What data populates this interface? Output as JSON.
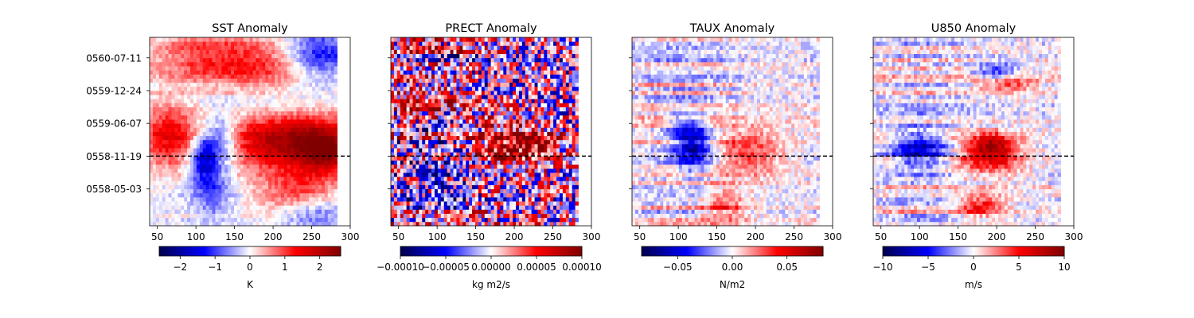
{
  "chart_data": [
    {
      "type": "heatmap",
      "title": "SST Anomaly",
      "x_ticks": [
        50,
        100,
        150,
        200,
        250,
        300
      ],
      "xlim": [
        40,
        300
      ],
      "data_x_extent": [
        40,
        283
      ],
      "y_ticks": [
        "0558-05-03",
        "0558-11-19",
        "0559-06-07",
        "0559-12-24",
        "0560-07-11"
      ],
      "y_tick_rows": [
        9,
        17,
        25,
        33,
        41
      ],
      "n_rows": 46,
      "reference_line_row": 17,
      "reference_line_style": "dashed",
      "colormap": "seismic",
      "colorbar": {
        "label": "K",
        "range": [
          -2.6,
          2.6
        ],
        "ticks": [
          "−2",
          "−1",
          "0",
          "1",
          "2"
        ],
        "tick_values": [
          -2,
          -1,
          0,
          1,
          2
        ]
      },
      "features": [
        {
          "x": 220,
          "row": 21,
          "wx": 60,
          "wr": 5,
          "value": 2.3
        },
        {
          "x": 270,
          "row": 18,
          "wx": 25,
          "wr": 4,
          "value": 1.5
        },
        {
          "x": 65,
          "row": 22,
          "wx": 25,
          "wr": 5,
          "value": 1.5
        },
        {
          "x": 110,
          "row": 17,
          "wx": 12,
          "wr": 4,
          "value": -1.6
        },
        {
          "x": 135,
          "row": 21,
          "wx": 15,
          "wr": 4,
          "value": -1.2
        },
        {
          "x": 120,
          "row": 10,
          "wx": 18,
          "wr": 5,
          "value": -0.9
        },
        {
          "x": 260,
          "row": 42,
          "wx": 30,
          "wr": 4,
          "value": -1.3
        },
        {
          "x": 110,
          "row": 42,
          "wx": 50,
          "wr": 5,
          "value": 1.0
        },
        {
          "x": 190,
          "row": 38,
          "wx": 45,
          "wr": 5,
          "value": 0.9
        },
        {
          "x": 230,
          "row": 8,
          "wx": 35,
          "wr": 4,
          "value": 1.0
        },
        {
          "x": 200,
          "row": 30,
          "wx": 60,
          "wr": 4,
          "value": -0.6
        },
        {
          "x": 250,
          "row": 3,
          "wx": 30,
          "wr": 3,
          "value": -0.9
        }
      ],
      "noise": 0.25,
      "stripe_amplitude": 0.2
    },
    {
      "type": "heatmap",
      "title": "PRECT Anomaly",
      "x_ticks": [
        50,
        100,
        150,
        200,
        250,
        300
      ],
      "xlim": [
        40,
        300
      ],
      "data_x_extent": [
        40,
        283
      ],
      "y_ticks": [
        "0558-05-03",
        "0558-11-19",
        "0559-06-07",
        "0559-12-24",
        "0560-07-11"
      ],
      "y_tick_rows": [
        9,
        17,
        25,
        33,
        41
      ],
      "n_rows": 46,
      "reference_line_row": 17,
      "reference_line_style": "dashed",
      "colormap": "seismic",
      "colorbar": {
        "label": "kg m2/s",
        "range": [
          -0.0001,
          0.0001
        ],
        "ticks": [
          "−0.00010",
          "−0.00005",
          "0.00000",
          "0.00005",
          "0.00010"
        ],
        "tick_values": [
          -0.0001,
          -5e-05,
          0,
          5e-05,
          0.0001
        ]
      },
      "features": [
        {
          "x": 190,
          "row": 21,
          "wx": 40,
          "wr": 4,
          "value": 8e-05
        },
        {
          "x": 230,
          "row": 19,
          "wx": 25,
          "wr": 3,
          "value": 4e-05
        },
        {
          "x": 230,
          "row": 34,
          "wx": 50,
          "wr": 8,
          "value": -2e-05
        },
        {
          "x": 100,
          "row": 12,
          "wx": 25,
          "wr": 8,
          "value": -3e-05
        },
        {
          "x": 70,
          "row": 30,
          "wx": 25,
          "wr": 8,
          "value": 3e-05
        }
      ],
      "noise": 7e-05,
      "stripe_amplitude": 5e-05
    },
    {
      "type": "heatmap",
      "title": "TAUX Anomaly",
      "x_ticks": [
        50,
        100,
        150,
        200,
        250,
        300
      ],
      "xlim": [
        40,
        300
      ],
      "data_x_extent": [
        40,
        283
      ],
      "y_ticks": [
        "0558-05-03",
        "0558-11-19",
        "0559-06-07",
        "0559-12-24",
        "0560-07-11"
      ],
      "y_tick_rows": [
        9,
        17,
        25,
        33,
        41
      ],
      "n_rows": 46,
      "reference_line_row": 17,
      "reference_line_style": "dashed",
      "colormap": "seismic",
      "colorbar": {
        "label": "N/m2",
        "range": [
          -0.083,
          0.083
        ],
        "ticks": [
          "−0.05",
          "0.00",
          "0.05"
        ],
        "tick_values": [
          -0.05,
          0,
          0.05
        ]
      },
      "features": [
        {
          "x": 120,
          "row": 20,
          "wx": 15,
          "wr": 4,
          "value": -0.06
        },
        {
          "x": 190,
          "row": 18,
          "wx": 30,
          "wr": 4,
          "value": 0.035
        },
        {
          "x": 160,
          "row": 5,
          "wx": 20,
          "wr": 3,
          "value": 0.03
        },
        {
          "x": 100,
          "row": 25,
          "wx": 15,
          "wr": 3,
          "value": -0.02
        }
      ],
      "noise": 0.012,
      "stripe_amplitude": 0.02
    },
    {
      "type": "heatmap",
      "title": "U850 Anomaly",
      "x_ticks": [
        50,
        100,
        150,
        200,
        250,
        300
      ],
      "xlim": [
        40,
        300
      ],
      "data_x_extent": [
        40,
        283
      ],
      "y_ticks": [
        "0558-05-03",
        "0558-11-19",
        "0559-06-07",
        "0559-12-24",
        "0560-07-11"
      ],
      "y_tick_rows": [
        9,
        17,
        25,
        33,
        41
      ],
      "n_rows": 46,
      "reference_line_row": 17,
      "reference_line_style": "dashed",
      "colormap": "seismic",
      "colorbar": {
        "label": "m/s",
        "range": [
          -10,
          10
        ],
        "ticks": [
          "−10",
          "−5",
          "0",
          "5",
          "10"
        ],
        "tick_values": [
          -10,
          -5,
          0,
          5,
          10
        ]
      },
      "features": [
        {
          "x": 100,
          "row": 19,
          "wx": 22,
          "wr": 3,
          "value": -6
        },
        {
          "x": 190,
          "row": 17,
          "wx": 28,
          "wr": 3,
          "value": 6
        },
        {
          "x": 195,
          "row": 20,
          "wx": 20,
          "wr": 2,
          "value": 5
        },
        {
          "x": 200,
          "row": 37,
          "wx": 20,
          "wr": 2,
          "value": -5
        },
        {
          "x": 210,
          "row": 35,
          "wx": 25,
          "wr": 1.5,
          "value": 6
        },
        {
          "x": 180,
          "row": 5,
          "wx": 20,
          "wr": 2,
          "value": 5
        }
      ],
      "noise": 1.5,
      "stripe_amplitude": 2.2
    }
  ]
}
